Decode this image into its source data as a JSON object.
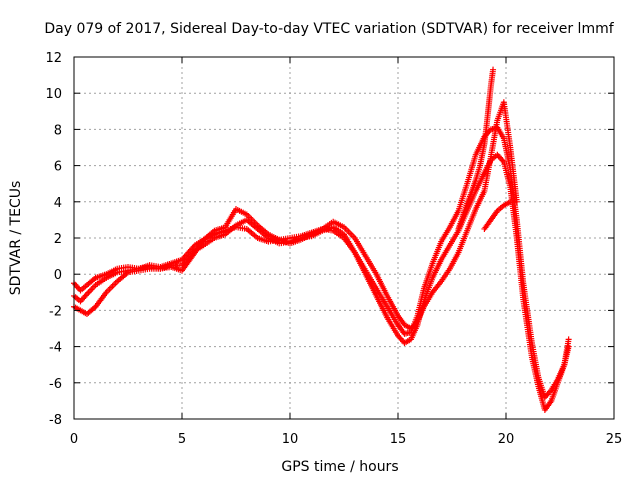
{
  "chart_data": {
    "type": "scatter",
    "title": "Day 079 of 2017, Sidereal Day-to-day VTEC variation (SDTVAR) for receiver lmmf",
    "xlabel": "GPS time / hours",
    "ylabel": "SDTVAR / TECUs",
    "xlim": [
      0,
      25
    ],
    "ylim": [
      -8,
      12
    ],
    "xticks": [
      "0",
      "5",
      "10",
      "15",
      "20",
      "25"
    ],
    "yticks": [
      "-8",
      "-6",
      "-4",
      "-2",
      "0",
      "2",
      "4",
      "6",
      "8",
      "10",
      "12"
    ],
    "grid": true,
    "marker": "plus",
    "color": "#ff0000",
    "series": [
      {
        "x": [
          0.0,
          0.3,
          0.6,
          1.0,
          1.5,
          2.0,
          2.5,
          3.0,
          3.5,
          4.0,
          4.5,
          5.0,
          5.3,
          5.6,
          6.0,
          6.5,
          7.0,
          7.5,
          8.0,
          8.5,
          9.0,
          9.5,
          10.0,
          10.5,
          11.0,
          11.5,
          12.0,
          12.5,
          13.0,
          13.5,
          14.0,
          14.5,
          15.0,
          15.3,
          15.6,
          15.9,
          16.2,
          16.6,
          17.0,
          17.4,
          17.8,
          18.2,
          18.6,
          19.0,
          19.3,
          19.6,
          19.9,
          20.2,
          20.5,
          20.8,
          21.2,
          21.5,
          21.8,
          22.1,
          22.4,
          22.7,
          22.9
        ],
        "y": [
          -0.5,
          -0.9,
          -0.6,
          -0.2,
          0.0,
          0.3,
          0.4,
          0.3,
          0.5,
          0.4,
          0.6,
          0.8,
          1.2,
          1.6,
          1.9,
          2.2,
          2.4,
          2.6,
          2.5,
          2.0,
          1.8,
          1.9,
          2.0,
          2.1,
          2.3,
          2.5,
          2.4,
          2.0,
          1.2,
          0.2,
          -0.8,
          -1.8,
          -2.8,
          -3.3,
          -3.2,
          -2.3,
          -0.8,
          0.6,
          1.8,
          2.6,
          3.5,
          5.0,
          6.6,
          7.6,
          8.0,
          8.1,
          7.5,
          5.8,
          3.0,
          -0.5,
          -3.8,
          -5.7,
          -6.8,
          -6.4,
          -5.8,
          -5.0,
          -3.6
        ]
      },
      {
        "x": [
          0.0,
          0.3,
          0.6,
          1.0,
          1.5,
          2.0,
          2.5,
          3.0,
          3.5,
          4.0,
          4.5,
          5.0,
          5.3,
          5.6,
          6.0,
          6.5,
          7.0,
          7.5,
          8.0,
          8.5,
          9.0,
          9.5,
          10.0,
          10.5,
          11.0,
          11.5,
          12.0,
          12.5,
          13.0,
          13.5,
          14.0,
          14.5,
          15.0,
          15.3,
          15.6,
          15.9,
          16.2,
          16.6,
          17.0,
          17.4,
          17.8,
          18.2,
          18.6,
          19.0,
          19.3,
          19.6,
          19.9,
          20.2,
          20.5,
          20.8,
          21.2,
          21.5,
          21.8,
          22.1,
          22.4,
          22.7,
          22.9
        ],
        "y": [
          -1.2,
          -1.5,
          -1.1,
          -0.6,
          -0.2,
          0.1,
          0.2,
          0.3,
          0.4,
          0.3,
          0.5,
          0.5,
          0.9,
          1.3,
          1.6,
          2.0,
          2.2,
          2.7,
          3.0,
          2.5,
          2.0,
          1.7,
          1.8,
          2.0,
          2.1,
          2.4,
          2.6,
          2.2,
          1.2,
          0.0,
          -1.2,
          -2.4,
          -3.4,
          -3.8,
          -3.6,
          -2.8,
          -1.5,
          -0.2,
          0.8,
          1.6,
          2.4,
          3.5,
          4.6,
          5.6,
          6.3,
          6.6,
          6.2,
          4.8,
          2.0,
          -1.4,
          -4.6,
          -6.2,
          -7.5,
          -7.0,
          -6.0,
          -5.0,
          -4.0
        ]
      },
      {
        "x": [
          0.0,
          0.3,
          0.6,
          1.0,
          1.5,
          2.0,
          2.5,
          3.0,
          3.5,
          4.0,
          4.5,
          5.0,
          5.3,
          5.6,
          6.0,
          6.5,
          7.0,
          7.5,
          8.0,
          8.5,
          9.0,
          9.5,
          10.0,
          10.5,
          11.0,
          11.5,
          12.0,
          12.5,
          13.0,
          13.5,
          14.0,
          14.5,
          15.0,
          15.3,
          15.6,
          15.9,
          16.2,
          16.6,
          17.0,
          17.4,
          17.8,
          18.2,
          18.6,
          19.0,
          19.3,
          19.6,
          19.9,
          20.2,
          20.5
        ],
        "y": [
          -1.8,
          -2.0,
          -2.2,
          -1.8,
          -1.0,
          -0.4,
          0.1,
          0.2,
          0.3,
          0.3,
          0.4,
          0.2,
          0.7,
          1.2,
          1.9,
          2.4,
          2.6,
          3.6,
          3.3,
          2.7,
          2.2,
          1.9,
          1.7,
          1.9,
          2.2,
          2.5,
          2.9,
          2.6,
          2.0,
          1.0,
          0.0,
          -1.2,
          -2.3,
          -2.8,
          -3.0,
          -2.6,
          -1.8,
          -1.0,
          -0.4,
          0.3,
          1.2,
          2.4,
          3.6,
          4.6,
          6.5,
          8.5,
          9.5,
          7.0,
          4.0
        ]
      },
      {
        "x": [
          17.8,
          18.0,
          18.2,
          18.4,
          18.6,
          18.8,
          19.0,
          19.1,
          19.2,
          19.3,
          19.4
        ],
        "y": [
          2.5,
          3.2,
          3.9,
          4.5,
          5.2,
          6.0,
          7.2,
          8.2,
          9.3,
          10.4,
          11.3
        ]
      },
      {
        "x": [
          19.0,
          19.3,
          19.6,
          19.9,
          20.2
        ],
        "y": [
          2.5,
          3.0,
          3.5,
          3.8,
          4.0
        ]
      }
    ]
  }
}
